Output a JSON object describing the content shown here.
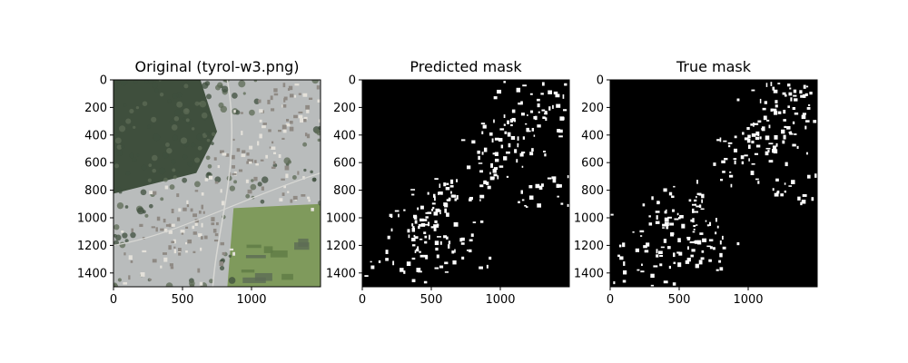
{
  "figure": {
    "background": "#ffffff",
    "axis_color": "#000000"
  },
  "chart_data": [
    {
      "type": "heatmap",
      "title": "Original (tyrol-w3.png)",
      "content": "aerial photograph",
      "xlabel": "",
      "ylabel": "",
      "xlim": [
        0,
        1500
      ],
      "ylim": [
        1500,
        0
      ],
      "xticks": [
        0,
        500,
        1000
      ],
      "yticks": [
        0,
        200,
        400,
        600,
        800,
        1000,
        1200,
        1400
      ],
      "grid": false,
      "colors": {
        "forest": "#3f4f3d",
        "forest_light": "#5d6b55",
        "urban": "#b9bcbc",
        "field": "#7f9a5c",
        "field_dark": "#5f7a45",
        "road": "#d8d8d4"
      }
    },
    {
      "type": "heatmap",
      "title": "Predicted mask",
      "content": "binary mask (buildings white on black)",
      "xlabel": "",
      "ylabel": "",
      "xlim": [
        0,
        1500
      ],
      "ylim": [
        1500,
        0
      ],
      "xticks": [
        0,
        500,
        1000
      ],
      "yticks": [
        0,
        200,
        400,
        600,
        800,
        1000,
        1200,
        1400
      ],
      "grid": false,
      "colors": {
        "background": "#000000",
        "foreground": "#ffffff"
      }
    },
    {
      "type": "heatmap",
      "title": "True mask",
      "content": "binary mask (buildings white on black)",
      "xlabel": "",
      "ylabel": "",
      "xlim": [
        0,
        1500
      ],
      "ylim": [
        1500,
        0
      ],
      "xticks": [
        0,
        500,
        1000
      ],
      "yticks": [
        0,
        200,
        400,
        600,
        800,
        1000,
        1200,
        1400
      ],
      "grid": false,
      "colors": {
        "background": "#000000",
        "foreground": "#ffffff"
      }
    }
  ]
}
